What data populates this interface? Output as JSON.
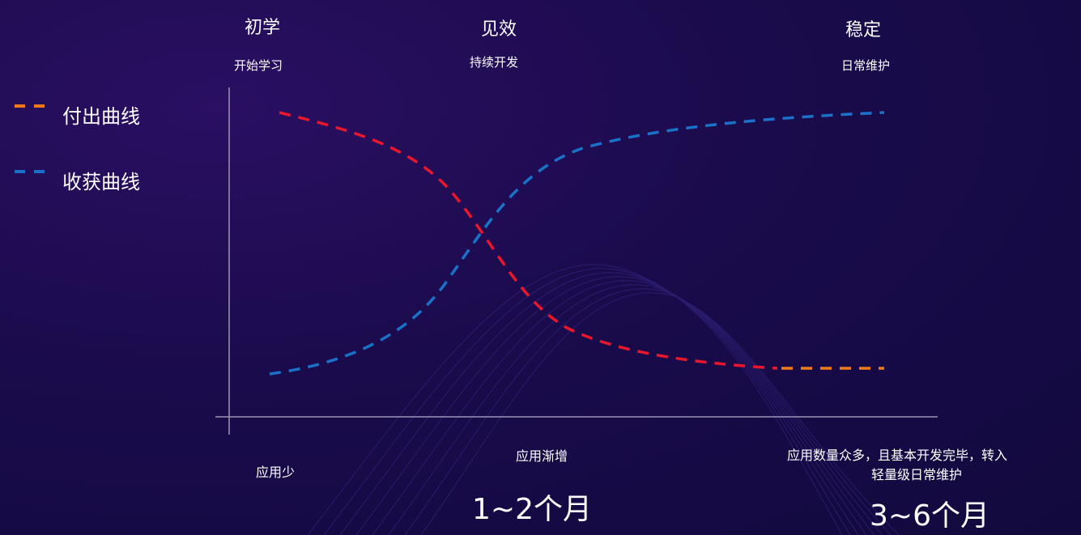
{
  "stages": [
    {
      "title": "初学",
      "subtitle": "开始学习"
    },
    {
      "title": "见效",
      "subtitle": "持续开发"
    },
    {
      "title": "稳定",
      "subtitle": "日常维护"
    }
  ],
  "legend": [
    {
      "label": "付出曲线",
      "color": "#f07a1a"
    },
    {
      "label": "收获曲线",
      "color": "#1a72c8"
    }
  ],
  "bottom": {
    "left": "应用少",
    "middle": "应用渐增",
    "right_line1": "应用数量众多，且基本开发完毕，转入",
    "right_line2": "轻量级日常维护",
    "duration_middle": "1~2个月",
    "duration_right": "3~6个月"
  },
  "colors": {
    "effort_curve": "#e8172b",
    "effort_tail": "#f07a1a",
    "gain_curve": "#1a72c8",
    "axis": "#9a96b4"
  }
}
